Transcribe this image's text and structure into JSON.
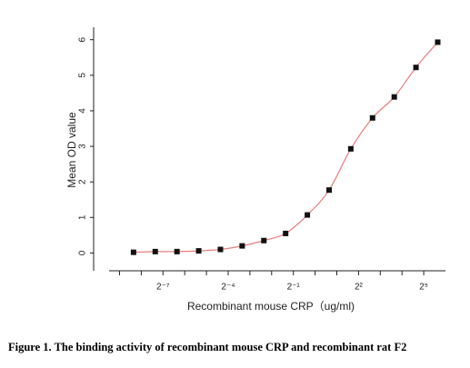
{
  "chart_data": {
    "type": "scatter",
    "x_label": "Recombinant mouse CRP（ug/ml)",
    "y_label": "Mean OD value",
    "caption": "Figure 1. The binding activity of recombinant mouse CRP and recombinant rat F2",
    "x": [
      0.0030518,
      0.0061035,
      0.012207,
      0.024414,
      0.048828,
      0.097656,
      0.195313,
      0.390625,
      0.78125,
      1.5625,
      3.125,
      6.25,
      12.5,
      25,
      50
    ],
    "series": [
      {
        "color": "#111111",
        "line_color": "#e87c7c",
        "values": [
          0.02,
          0.04,
          0.04,
          0.06,
          0.1,
          0.2,
          0.35,
          0.55,
          1.07,
          1.77,
          2.93,
          3.8,
          4.39,
          5.22,
          5.93
        ]
      }
    ],
    "xscale": "log2",
    "xlim": [
      0.0014,
      64
    ],
    "xticks": [
      {
        "value": 0.0078125,
        "label": "2⁻⁷"
      },
      {
        "value": 0.0625,
        "label": "2⁻⁴"
      },
      {
        "value": 0.5,
        "label": "2⁻¹"
      },
      {
        "value": 4,
        "label": "2²"
      },
      {
        "value": 32,
        "label": "2⁵"
      }
    ],
    "x_minor_ticks": [
      0.001953125,
      0.00390625,
      0.015625,
      0.03125,
      0.125,
      0.25,
      1,
      2,
      8,
      16
    ],
    "ylim": [
      -0.5,
      6.35
    ],
    "yticks": [
      0,
      1,
      2,
      3,
      4,
      5,
      6
    ]
  }
}
